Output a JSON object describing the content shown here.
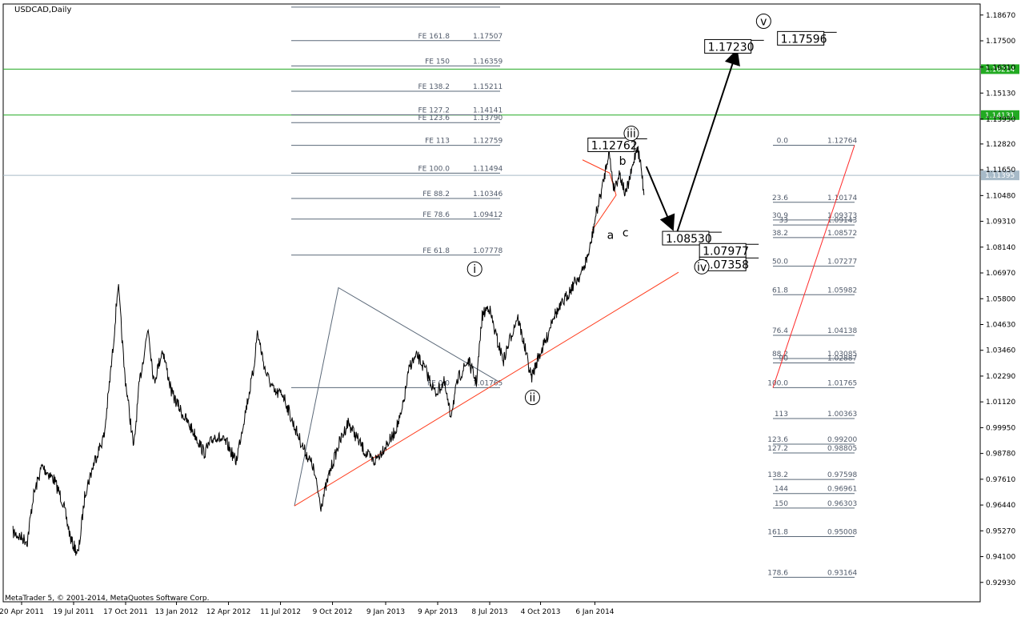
{
  "window": {
    "title": "USDCAD,Daily",
    "copyright": "MetaTrader 5, © 2001-2014, MetaQuotes Software Corp."
  },
  "colors": {
    "background": "#ffffff",
    "price": "#000000",
    "fib_line": "#5a6878",
    "support_line": "#ff3a1a",
    "resistance_line": "#22aa22",
    "current_price_line": "#a7bac8"
  },
  "chart_data": {
    "type": "line",
    "symbol": "USDCAD",
    "timeframe": "Daily",
    "ylim": [
      0.9205,
      1.1917
    ],
    "y_ticks": [
      "1.18670",
      "1.17500",
      "1.16310",
      "1.15130",
      "1.13950",
      "1.12820",
      "1.11650",
      "1.10480",
      "1.09310",
      "1.08140",
      "1.06970",
      "1.05800",
      "1.04630",
      "1.03460",
      "1.02290",
      "1.01120",
      "0.99950",
      "0.98780",
      "0.97610",
      "0.96440",
      "0.95270",
      "0.94100",
      "0.92930"
    ],
    "x_ticks": [
      "20 Apr 2011",
      "19 Jul 2011",
      "17 Oct 2011",
      "13 Jan 2012",
      "12 Apr 2012",
      "11 Jul 2012",
      "9 Oct 2012",
      "9 Jan 2013",
      "9 Apr 2013",
      "8 Jul 2013",
      "4 Oct 2013",
      "6 Jan 2014"
    ],
    "price_path": [
      {
        "date": "2011-04-05",
        "close": 0.952
      },
      {
        "date": "2011-04-30",
        "close": 0.948
      },
      {
        "date": "2011-05-10",
        "close": 0.968
      },
      {
        "date": "2011-05-25",
        "close": 0.982
      },
      {
        "date": "2011-06-15",
        "close": 0.976
      },
      {
        "date": "2011-06-30",
        "close": 0.966
      },
      {
        "date": "2011-07-15",
        "close": 0.948
      },
      {
        "date": "2011-07-27",
        "close": 0.942
      },
      {
        "date": "2011-08-08",
        "close": 0.97
      },
      {
        "date": "2011-08-25",
        "close": 0.985
      },
      {
        "date": "2011-09-10",
        "close": 0.996
      },
      {
        "date": "2011-09-25",
        "close": 1.035
      },
      {
        "date": "2011-10-04",
        "close": 1.065
      },
      {
        "date": "2011-10-15",
        "close": 1.025
      },
      {
        "date": "2011-10-31",
        "close": 0.99
      },
      {
        "date": "2011-11-10",
        "close": 1.02
      },
      {
        "date": "2011-11-25",
        "close": 1.045
      },
      {
        "date": "2011-12-05",
        "close": 1.02
      },
      {
        "date": "2011-12-20",
        "close": 1.035
      },
      {
        "date": "2012-01-05",
        "close": 1.015
      },
      {
        "date": "2012-01-25",
        "close": 1.005
      },
      {
        "date": "2012-02-15",
        "close": 0.996
      },
      {
        "date": "2012-03-01",
        "close": 0.988
      },
      {
        "date": "2012-03-20",
        "close": 0.996
      },
      {
        "date": "2012-04-10",
        "close": 0.992
      },
      {
        "date": "2012-04-25",
        "close": 0.984
      },
      {
        "date": "2012-05-10",
        "close": 1.005
      },
      {
        "date": "2012-05-25",
        "close": 1.025
      },
      {
        "date": "2012-06-01",
        "close": 1.043
      },
      {
        "date": "2012-06-15",
        "close": 1.025
      },
      {
        "date": "2012-07-01",
        "close": 1.015
      },
      {
        "date": "2012-07-15",
        "close": 1.015
      },
      {
        "date": "2012-08-01",
        "close": 1.002
      },
      {
        "date": "2012-08-20",
        "close": 0.99
      },
      {
        "date": "2012-09-05",
        "close": 0.982
      },
      {
        "date": "2012-09-19",
        "close": 0.964
      },
      {
        "date": "2012-10-05",
        "close": 0.98
      },
      {
        "date": "2012-10-20",
        "close": 0.992
      },
      {
        "date": "2012-11-05",
        "close": 1.002
      },
      {
        "date": "2012-11-20",
        "close": 0.995
      },
      {
        "date": "2012-12-05",
        "close": 0.988
      },
      {
        "date": "2012-12-20",
        "close": 0.984
      },
      {
        "date": "2013-01-05",
        "close": 0.99
      },
      {
        "date": "2013-01-20",
        "close": 0.995
      },
      {
        "date": "2013-02-05",
        "close": 1.005
      },
      {
        "date": "2013-02-20",
        "close": 1.028
      },
      {
        "date": "2013-03-05",
        "close": 1.032
      },
      {
        "date": "2013-03-20",
        "close": 1.025
      },
      {
        "date": "2013-04-05",
        "close": 1.015
      },
      {
        "date": "2013-04-20",
        "close": 1.02
      },
      {
        "date": "2013-05-01",
        "close": 1.005
      },
      {
        "date": "2013-05-15",
        "close": 1.022
      },
      {
        "date": "2013-06-01",
        "close": 1.03
      },
      {
        "date": "2013-06-15",
        "close": 1.02
      },
      {
        "date": "2013-06-25",
        "close": 1.05
      },
      {
        "date": "2013-07-06",
        "close": 1.055
      },
      {
        "date": "2013-07-20",
        "close": 1.04
      },
      {
        "date": "2013-08-01",
        "close": 1.03
      },
      {
        "date": "2013-08-15",
        "close": 1.042
      },
      {
        "date": "2013-08-25",
        "close": 1.05
      },
      {
        "date": "2013-09-05",
        "close": 1.038
      },
      {
        "date": "2013-09-18",
        "close": 1.022
      },
      {
        "date": "2013-10-01",
        "close": 1.032
      },
      {
        "date": "2013-10-15",
        "close": 1.04
      },
      {
        "date": "2013-10-25",
        "close": 1.05
      },
      {
        "date": "2013-11-05",
        "close": 1.053
      },
      {
        "date": "2013-11-20",
        "close": 1.06
      },
      {
        "date": "2013-12-01",
        "close": 1.065
      },
      {
        "date": "2013-12-15",
        "close": 1.07
      },
      {
        "date": "2013-12-28",
        "close": 1.08
      },
      {
        "date": "2014-01-07",
        "close": 1.095
      },
      {
        "date": "2014-01-20",
        "close": 1.11
      },
      {
        "date": "2014-01-30",
        "close": 1.125
      },
      {
        "date": "2014-02-08",
        "close": 1.108
      },
      {
        "date": "2014-02-18",
        "close": 1.115
      },
      {
        "date": "2014-02-28",
        "close": 1.105
      },
      {
        "date": "2014-03-10",
        "close": 1.115
      },
      {
        "date": "2014-03-20",
        "close": 1.1276
      },
      {
        "date": "2014-03-27",
        "close": 1.118
      },
      {
        "date": "2014-04-01",
        "close": 1.105
      }
    ],
    "current_price": {
      "value": 1.11395,
      "label": "1.11395"
    },
    "resistance_lines": [
      {
        "value": 1.16214,
        "label": "1.16214"
      },
      {
        "value": 1.14131,
        "label": "1.14131"
      }
    ],
    "fe_levels": [
      {
        "label": "FE 161.8",
        "value_label": "1.17507",
        "value": 1.17507
      },
      {
        "label": "FE 150",
        "value_label": "1.16359",
        "value": 1.16359
      },
      {
        "label": "FE 138.2",
        "value_label": "1.15211",
        "value": 1.15211
      },
      {
        "label": "FE 127.2",
        "value_label": "1.14141",
        "value": 1.14141
      },
      {
        "label": "FE 123.6",
        "value_label": "1.13790",
        "value": 1.1379
      },
      {
        "label": "FE 113",
        "value_label": "1.12759",
        "value": 1.12759
      },
      {
        "label": "FE 100.0",
        "value_label": "1.11494",
        "value": 1.11494
      },
      {
        "label": "FE 88.2",
        "value_label": "1.10346",
        "value": 1.10346
      },
      {
        "label": "FE 78.6",
        "value_label": "1.09412",
        "value": 1.09412
      },
      {
        "label": "FE 61.8",
        "value_label": "1.07778",
        "value": 1.07778
      },
      {
        "label": "FE 0.0",
        "value_label": "1.01765",
        "value": 1.01765
      }
    ],
    "fe_top_line": 1.1903,
    "fib_levels": [
      {
        "label": "0.0",
        "value_label": "1.12764",
        "value": 1.12764
      },
      {
        "label": "23.6",
        "value_label": "1.10174",
        "value": 1.10174
      },
      {
        "label": "30.9",
        "value_label": "1.09373",
        "value": 1.09373
      },
      {
        "label": "33",
        "value_label": "1.09143",
        "value": 1.09143
      },
      {
        "label": "38.2",
        "value_label": "1.08572",
        "value": 1.08572
      },
      {
        "label": "50.0",
        "value_label": "1.07277",
        "value": 1.07277
      },
      {
        "label": "61.8",
        "value_label": "1.05982",
        "value": 1.05982
      },
      {
        "label": "76.4",
        "value_label": "1.04138",
        "value": 1.04138
      },
      {
        "label": "88.2",
        "value_label": "1.03085",
        "value": 1.03085
      },
      {
        "label": "90",
        "value_label": "1.02887",
        "value": 1.02887
      },
      {
        "label": "100.0",
        "value_label": "1.01765",
        "value": 1.01765
      },
      {
        "label": "113",
        "value_label": "1.00363",
        "value": 1.00363
      },
      {
        "label": "123.6",
        "value_label": "0.99200",
        "value": 0.992
      },
      {
        "label": "127.2",
        "value_label": "0.98805",
        "value": 0.98805
      },
      {
        "label": "138.2",
        "value_label": "0.97598",
        "value": 0.97598
      },
      {
        "label": "144",
        "value_label": "0.96961",
        "value": 0.96961
      },
      {
        "label": "150",
        "value_label": "0.96303",
        "value": 0.96303
      },
      {
        "label": "161.8",
        "value_label": "0.95008",
        "value": 0.95008
      },
      {
        "label": "178.6",
        "value_label": "0.93164",
        "value": 0.93164
      }
    ],
    "price_boxes": [
      {
        "label": "1.17230",
        "value": 1.1723
      },
      {
        "label": "1.17596",
        "value": 1.17596
      },
      {
        "label": "1.12762",
        "value": 1.12762
      },
      {
        "label": "1.08530",
        "value": 1.0853
      },
      {
        "label": "1.07977",
        "value": 1.07977
      },
      {
        "label": "1.07358",
        "value": 1.07358
      }
    ],
    "wave_labels": [
      {
        "label": "i",
        "circled": true,
        "date": "2013-06-12",
        "value": 1.0715
      },
      {
        "label": "ii",
        "circled": true,
        "date": "2013-09-20",
        "value": 1.0132
      },
      {
        "label": "iii",
        "circled": true,
        "date": "2014-03-10",
        "value": 1.133
      },
      {
        "label": "iv",
        "circled": true,
        "date": "2014-07-10",
        "value": 1.0725
      },
      {
        "label": "v",
        "circled": true,
        "date": "2014-10-25",
        "value": 1.1839
      },
      {
        "label": "a",
        "circled": false,
        "date": "2014-02-02",
        "value": 1.087
      },
      {
        "label": "b",
        "circled": false,
        "date": "2014-02-23",
        "value": 1.1205
      },
      {
        "label": "c",
        "circled": false,
        "date": "2014-02-28",
        "value": 1.088
      }
    ],
    "grid": false,
    "legend": "none"
  }
}
